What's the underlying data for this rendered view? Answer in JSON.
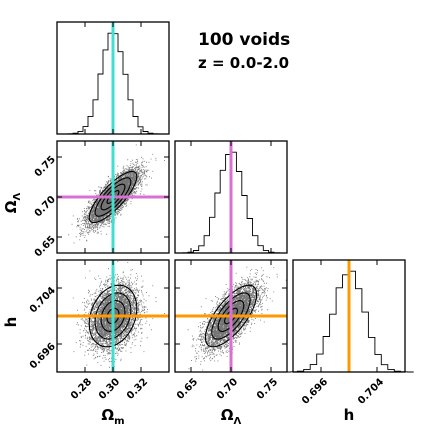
{
  "annotation": {
    "line1": "100 voids",
    "line2": "z = 0.0-2.0"
  },
  "colors": {
    "omega_m_truth": "#40e0d0",
    "omega_lambda_truth": "#da70d6",
    "h_truth": "#ff9900",
    "points": "#000000"
  },
  "chart_data": {
    "type": "corner",
    "parameters": [
      {
        "key": "Om",
        "label_main": "Ω",
        "label_sub": "m",
        "truth": 0.3,
        "range": [
          0.26,
          0.34
        ],
        "ticks": [
          0.28,
          0.3,
          0.32
        ],
        "tick_labels": [
          "0.28",
          "0.30",
          "0.32"
        ],
        "sigma": 0.0085
      },
      {
        "key": "OL",
        "label_main": "Ω",
        "label_sub": "Λ",
        "truth": 0.7,
        "range": [
          0.63,
          0.77
        ],
        "ticks": [
          0.65,
          0.7,
          0.75
        ],
        "tick_labels": [
          "0.65",
          "0.70",
          "0.75"
        ],
        "sigma": 0.016
      },
      {
        "key": "h",
        "label_main": "h",
        "label_sub": "",
        "truth": 0.7,
        "range": [
          0.692,
          0.708
        ],
        "ticks": [
          0.696,
          0.704
        ],
        "tick_labels": [
          "0.696",
          "0.704"
        ],
        "sigma": 0.0022
      }
    ],
    "correlations": {
      "Om_OL": 0.8,
      "Om_h": 0.25,
      "OL_h": 0.7
    },
    "contour_levels_sigma": [
      0.5,
      1.0,
      1.5,
      2.0
    ],
    "histogram_bins": 20,
    "samples": 9000
  }
}
